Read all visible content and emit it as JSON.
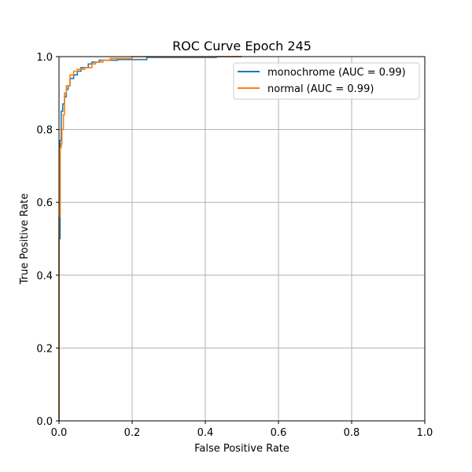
{
  "chart_data": {
    "type": "line",
    "title": "ROC Curve Epoch 245",
    "xlabel": "False Positive Rate",
    "ylabel": "True Positive Rate",
    "xlim": [
      0,
      1
    ],
    "ylim": [
      0,
      1
    ],
    "xticks": [
      "0.0",
      "0.2",
      "0.4",
      "0.6",
      "0.8",
      "1.0"
    ],
    "yticks": [
      "0.0",
      "0.2",
      "0.4",
      "0.6",
      "0.8",
      "1.0"
    ],
    "grid": true,
    "legend_position": "top-right",
    "series": [
      {
        "name": "monochrome (AUC = 0.99)",
        "color": "#1f77b4",
        "x": [
          0.0,
          0.0,
          0.003,
          0.003,
          0.006,
          0.006,
          0.01,
          0.01,
          0.015,
          0.015,
          0.02,
          0.02,
          0.025,
          0.025,
          0.03,
          0.03,
          0.04,
          0.04,
          0.05,
          0.05,
          0.06,
          0.06,
          0.08,
          0.08,
          0.09,
          0.09,
          0.11,
          0.11,
          0.16,
          0.16,
          0.24,
          0.24,
          0.43,
          0.43,
          0.5
        ],
        "y": [
          0.0,
          0.5,
          0.5,
          0.77,
          0.77,
          0.85,
          0.85,
          0.87,
          0.87,
          0.89,
          0.89,
          0.91,
          0.91,
          0.92,
          0.92,
          0.94,
          0.94,
          0.95,
          0.95,
          0.96,
          0.96,
          0.97,
          0.97,
          0.98,
          0.98,
          0.985,
          0.985,
          0.99,
          0.99,
          0.992,
          0.992,
          0.998,
          0.998,
          1.0,
          1.0
        ]
      },
      {
        "name": "normal (AUC = 0.99)",
        "color": "#ff7f0e",
        "x": [
          0.0,
          0.0,
          0.003,
          0.003,
          0.006,
          0.006,
          0.008,
          0.008,
          0.012,
          0.012,
          0.015,
          0.015,
          0.02,
          0.02,
          0.03,
          0.03,
          0.04,
          0.04,
          0.05,
          0.05,
          0.07,
          0.07,
          0.09,
          0.09,
          0.1,
          0.1,
          0.12,
          0.12,
          0.14,
          0.14,
          0.2,
          0.2,
          0.5
        ],
        "y": [
          0.0,
          0.56,
          0.56,
          0.75,
          0.75,
          0.76,
          0.76,
          0.8,
          0.8,
          0.84,
          0.84,
          0.9,
          0.9,
          0.92,
          0.92,
          0.95,
          0.95,
          0.96,
          0.96,
          0.965,
          0.965,
          0.97,
          0.97,
          0.98,
          0.98,
          0.985,
          0.985,
          0.99,
          0.99,
          0.995,
          0.995,
          1.0,
          1.0
        ]
      }
    ]
  }
}
